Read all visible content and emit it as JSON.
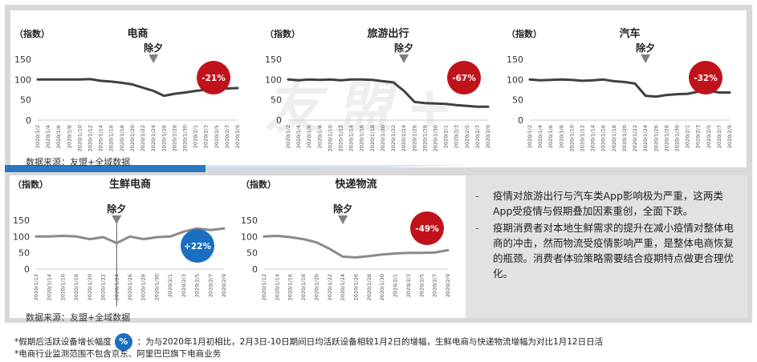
{
  "watermark": "友盟+",
  "source_top": "数据来源：友盟+全域数据",
  "source_bottom": "数据来源：友盟+全域数据",
  "notes": [
    "疫情对旅游出行与汽车类App影响极为严重，这两类App受疫情与假期叠加因素重创，全面下跌。",
    "疫期消费者对本地生鲜需求的提升在减小疫情对整体电商的冲击，然而物流受疫情影响严重，是整体电商恢复的瓶颈。消费者体验策略需要结合疫期特点做更合理优化。"
  ],
  "footnote1_prefix": "*假期后活跃设备增长幅度",
  "footnote1_icon": "%",
  "footnote1_text": "：为与2020年1月初相比，2月3日-10日期间日均活跃设备相较1月2日的增幅，生鲜电商与快递物流增幅为对比1月12日日活",
  "footnote2": "*电商行业监测范围不包含京东、阿里巴巴旗下电商业务",
  "colors": {
    "red": "#c0121b",
    "blue": "#1a6ec1",
    "dark_line": "#404040",
    "gray_line": "#8a8a8a"
  },
  "chart_data": [
    {
      "type": "line",
      "title": "电商",
      "ylabel": "（指数）",
      "ylim": [
        0,
        150
      ],
      "yticks": [
        0,
        50,
        100,
        150
      ],
      "annotation": "除夕",
      "annotation_x": "2020/1/24",
      "badge": "-21%",
      "badge_color": "#c0121b",
      "line_color": "#404040",
      "x": [
        "2020/1/2",
        "2020/1/4",
        "2020/1/6",
        "2020/1/8",
        "2020/1/10",
        "2020/1/12",
        "2020/1/14",
        "2020/1/16",
        "2020/1/18",
        "2020/1/20",
        "2020/1/22",
        "2020/1/24",
        "2020/1/26",
        "2020/1/28",
        "2020/1/30",
        "2020/2/1",
        "2020/2/3",
        "2020/2/5",
        "2020/2/7",
        "2020/2/9"
      ],
      "values": [
        100,
        100,
        100,
        100,
        100,
        101,
        97,
        95,
        92,
        88,
        80,
        72,
        60,
        65,
        68,
        72,
        75,
        77,
        78,
        79
      ]
    },
    {
      "type": "line",
      "title": "旅游出行",
      "ylabel": "（指数）",
      "ylim": [
        0,
        150
      ],
      "yticks": [
        0,
        50,
        100,
        150
      ],
      "annotation": "除夕",
      "annotation_x": "2020/1/24",
      "badge": "-67%",
      "badge_color": "#c0121b",
      "line_color": "#404040",
      "x": [
        "2020/1/2",
        "2020/1/4",
        "2020/1/6",
        "2020/1/8",
        "2020/1/10",
        "2020/1/12",
        "2020/1/14",
        "2020/1/16",
        "2020/1/18",
        "2020/1/20",
        "2020/1/22",
        "2020/1/24",
        "2020/1/26",
        "2020/1/28",
        "2020/1/30",
        "2020/2/1",
        "2020/2/3",
        "2020/2/5",
        "2020/2/7",
        "2020/2/9"
      ],
      "values": [
        100,
        98,
        100,
        99,
        100,
        98,
        100,
        100,
        99,
        96,
        93,
        72,
        45,
        42,
        41,
        40,
        37,
        35,
        33,
        33
      ]
    },
    {
      "type": "line",
      "title": "汽车",
      "ylabel": "（指数）",
      "ylim": [
        0,
        150
      ],
      "yticks": [
        0,
        50,
        100,
        150
      ],
      "annotation": "除夕",
      "annotation_x": "2020/1/24",
      "badge": "-32%",
      "badge_color": "#c0121b",
      "line_color": "#404040",
      "x": [
        "2020/1/2",
        "2020/1/4",
        "2020/1/6",
        "2020/1/8",
        "2020/1/10",
        "2020/1/12",
        "2020/1/14",
        "2020/1/16",
        "2020/1/18",
        "2020/1/20",
        "2020/1/22",
        "2020/1/24",
        "2020/1/26",
        "2020/1/28",
        "2020/1/30",
        "2020/2/1",
        "2020/2/3",
        "2020/2/5",
        "2020/2/7",
        "2020/2/9"
      ],
      "values": [
        100,
        98,
        99,
        100,
        99,
        97,
        98,
        100,
        96,
        94,
        90,
        60,
        58,
        62,
        64,
        65,
        70,
        72,
        68,
        68
      ]
    },
    {
      "type": "line",
      "title": "生鲜电商",
      "ylabel": "（指数）",
      "ylim": [
        0,
        150
      ],
      "yticks": [
        0,
        50,
        100,
        150
      ],
      "annotation": "除夕",
      "annotation_x": "2020/1/24",
      "badge": "+22%",
      "badge_color": "#1a6ec1",
      "line_color": "#8a8a8a",
      "x": [
        "2020/1/12",
        "2020/1/14",
        "2020/1/16",
        "2020/1/18",
        "2020/1/20",
        "2020/1/22",
        "2020/1/24",
        "2020/1/26",
        "2020/1/28",
        "2020/1/30",
        "2020/2/1",
        "2020/2/3",
        "2020/2/5",
        "2020/2/7",
        "2020/2/9"
      ],
      "values": [
        100,
        100,
        102,
        100,
        92,
        98,
        80,
        100,
        92,
        98,
        100,
        115,
        125,
        120,
        125
      ]
    },
    {
      "type": "line",
      "title": "快递物流",
      "ylabel": "（指数）",
      "ylim": [
        0,
        150
      ],
      "yticks": [
        0,
        50,
        100,
        150
      ],
      "annotation": "除夕",
      "annotation_x": "2020/1/24",
      "badge": "-49%",
      "badge_color": "#c0121b",
      "line_color": "#8a8a8a",
      "x": [
        "2020/1/12",
        "2020/1/14",
        "2020/1/16",
        "2020/1/18",
        "2020/1/20",
        "2020/1/22",
        "2020/1/24",
        "2020/1/26",
        "2020/1/28",
        "2020/1/30",
        "2020/2/1",
        "2020/2/3",
        "2020/2/5",
        "2020/2/7",
        "2020/2/9"
      ],
      "values": [
        100,
        102,
        98,
        92,
        82,
        62,
        38,
        36,
        40,
        45,
        48,
        50,
        50,
        51,
        58
      ]
    }
  ]
}
